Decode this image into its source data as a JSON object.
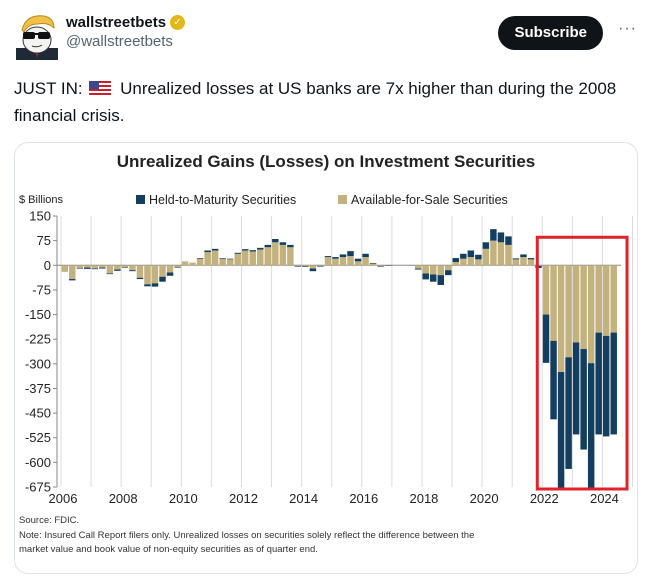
{
  "post": {
    "display_name": "wallstreetbets",
    "handle": "@wallstreetbets",
    "verified_badge": "gold-verified",
    "subscribe_label": "Subscribe",
    "more_label": "···",
    "text_prefix": "JUST IN:",
    "flag_icon": "us-flag",
    "text_body": "Unrealized losses at US banks are 7x higher than during the 2008 financial crisis."
  },
  "colors": {
    "htm": "#133e5f",
    "afs": "#c3b17e",
    "highlight_box": "#e0232b",
    "subscribe_bg": "#0f1419",
    "verified": "#e2b719"
  },
  "chart_data": {
    "type": "bar",
    "stacked": true,
    "title": "Unrealized Gains (Losses) on Investment Securities",
    "ylabel": "$ Billions",
    "xlabel": "",
    "ylim": [
      -675,
      150
    ],
    "yticks": [
      150,
      75,
      0,
      -75,
      -150,
      -225,
      -300,
      -375,
      -450,
      -525,
      -600,
      -675
    ],
    "xticks": [
      "2006",
      "2008",
      "2010",
      "2012",
      "2014",
      "2016",
      "2018",
      "2020",
      "2022",
      "2024"
    ],
    "legend": {
      "placement": "top-center",
      "entries": [
        "Held-to-Maturity Securities",
        "Available-for-Sale Securities"
      ]
    },
    "grid": "vertical-year-lines",
    "annotation": "red box highlighting 2022–2024",
    "start_period": "2006Q1",
    "frequency": "quarterly",
    "x": [
      "2006Q1",
      "2006Q2",
      "2006Q3",
      "2006Q4",
      "2007Q1",
      "2007Q2",
      "2007Q3",
      "2007Q4",
      "2008Q1",
      "2008Q2",
      "2008Q3",
      "2008Q4",
      "2009Q1",
      "2009Q2",
      "2009Q3",
      "2009Q4",
      "2010Q1",
      "2010Q2",
      "2010Q3",
      "2010Q4",
      "2011Q1",
      "2011Q2",
      "2011Q3",
      "2011Q4",
      "2012Q1",
      "2012Q2",
      "2012Q3",
      "2012Q4",
      "2013Q1",
      "2013Q2",
      "2013Q3",
      "2013Q4",
      "2014Q1",
      "2014Q2",
      "2014Q3",
      "2014Q4",
      "2015Q1",
      "2015Q2",
      "2015Q3",
      "2015Q4",
      "2016Q1",
      "2016Q2",
      "2016Q3",
      "2016Q4",
      "2017Q1",
      "2017Q2",
      "2017Q3",
      "2017Q4",
      "2018Q1",
      "2018Q2",
      "2018Q3",
      "2018Q4",
      "2019Q1",
      "2019Q2",
      "2019Q3",
      "2019Q4",
      "2020Q1",
      "2020Q2",
      "2020Q3",
      "2020Q4",
      "2021Q1",
      "2021Q2",
      "2021Q3",
      "2021Q4",
      "2022Q1",
      "2022Q2",
      "2022Q3",
      "2022Q4",
      "2023Q1",
      "2023Q2",
      "2023Q3",
      "2023Q4",
      "2024Q1",
      "2024Q2"
    ],
    "series": [
      {
        "name": "Available-for-Sale Securities",
        "values": [
          -20,
          -42,
          -8,
          -7,
          -10,
          -7,
          -25,
          -13,
          -5,
          -15,
          -38,
          -58,
          -55,
          -35,
          -22,
          -5,
          12,
          8,
          20,
          40,
          45,
          20,
          18,
          35,
          45,
          42,
          48,
          55,
          70,
          62,
          55,
          -2,
          -3,
          -10,
          -2,
          25,
          20,
          25,
          28,
          12,
          25,
          5,
          -2,
          -1,
          0,
          0,
          0,
          -10,
          -25,
          -28,
          -30,
          -15,
          10,
          20,
          25,
          18,
          50,
          75,
          70,
          62,
          18,
          25,
          18,
          -2,
          -150,
          -230,
          -325,
          -280,
          -235,
          -255,
          -298,
          -205,
          -215,
          -205
        ]
      },
      {
        "name": "Held-to-Maturity Securities",
        "values": [
          0,
          -4,
          -2,
          -4,
          -2,
          -3,
          -2,
          -4,
          -2,
          -3,
          -4,
          -6,
          -10,
          -15,
          -10,
          -2,
          0,
          0,
          2,
          5,
          5,
          2,
          2,
          3,
          4,
          4,
          5,
          7,
          10,
          8,
          7,
          -2,
          -2,
          -8,
          -2,
          3,
          5,
          8,
          15,
          8,
          10,
          2,
          -2,
          -1,
          0,
          0,
          0,
          -3,
          -18,
          -22,
          -30,
          -15,
          12,
          15,
          20,
          14,
          20,
          35,
          30,
          26,
          3,
          8,
          4,
          -6,
          -147,
          -239,
          -356,
          -340,
          -280,
          -306,
          -383,
          -310,
          -306,
          -310
        ]
      }
    ],
    "source": "Source: FDIC.",
    "note": "Note: Insured Call Report filers only. Unrealized losses on securities solely reflect the difference between the market value and book value of non-equity securities as of quarter end."
  }
}
